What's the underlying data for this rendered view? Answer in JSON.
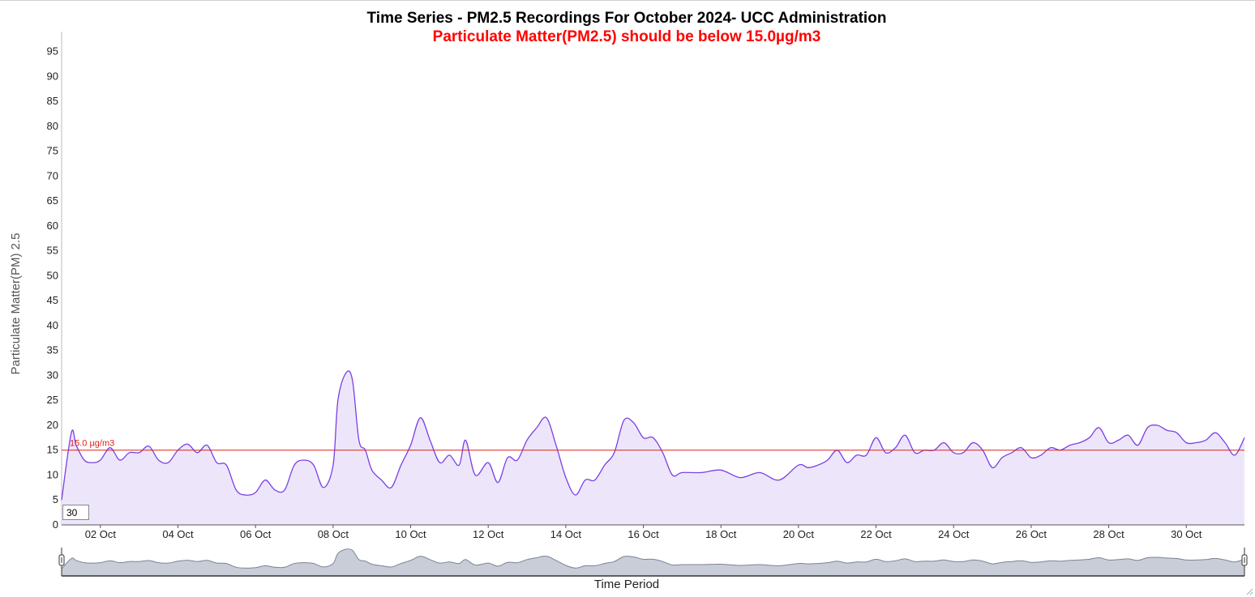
{
  "chart_data": {
    "type": "area",
    "title": "Time Series - PM2.5 Recordings For October 2024- UCC Administration",
    "subtitle": "Particulate Matter(PM2.5) should be below 15.0µg/m3",
    "ylabel": "Particulate Matter(PM) 2.5",
    "xlabel": "Time Period",
    "ylim": [
      0,
      99
    ],
    "yticks": [
      "0",
      "5",
      "10",
      "15",
      "20",
      "25",
      "30",
      "35",
      "40",
      "45",
      "50",
      "55",
      "60",
      "65",
      "70",
      "75",
      "80",
      "85",
      "90",
      "95"
    ],
    "xlim": [
      "2024-10-01T00:00",
      "2024-10-31T12:00"
    ],
    "xticks": [
      {
        "date": "2024-10-02",
        "label": "02 Oct"
      },
      {
        "date": "2024-10-04",
        "label": "04 Oct"
      },
      {
        "date": "2024-10-06",
        "label": "06 Oct"
      },
      {
        "date": "2024-10-08",
        "label": "08 Oct"
      },
      {
        "date": "2024-10-10",
        "label": "10 Oct"
      },
      {
        "date": "2024-10-12",
        "label": "12 Oct"
      },
      {
        "date": "2024-10-14",
        "label": "14 Oct"
      },
      {
        "date": "2024-10-16",
        "label": "16 Oct"
      },
      {
        "date": "2024-10-18",
        "label": "18 Oct"
      },
      {
        "date": "2024-10-20",
        "label": "20 Oct"
      },
      {
        "date": "2024-10-22",
        "label": "22 Oct"
      },
      {
        "date": "2024-10-24",
        "label": "24 Oct"
      },
      {
        "date": "2024-10-26",
        "label": "26 Oct"
      },
      {
        "date": "2024-10-28",
        "label": "28 Oct"
      },
      {
        "date": "2024-10-30",
        "label": "30 Oct"
      }
    ],
    "threshold": {
      "value": 15.0,
      "label": "15.0 µg/m3",
      "color": "#e0201a"
    },
    "series": [
      {
        "color": "#7b3fe4",
        "fill": "#ede6fb",
        "x": [
          "2024-10-01T00:00",
          "2024-10-01T06:00",
          "2024-10-01T09:00",
          "2024-10-01T14:00",
          "2024-10-01T19:00",
          "2024-10-02T00:00",
          "2024-10-02T06:00",
          "2024-10-02T12:00",
          "2024-10-02T18:00",
          "2024-10-03T00:00",
          "2024-10-03T06:00",
          "2024-10-03T12:00",
          "2024-10-03T18:00",
          "2024-10-04T00:00",
          "2024-10-04T06:00",
          "2024-10-04T12:00",
          "2024-10-04T18:00",
          "2024-10-05T00:00",
          "2024-10-05T06:00",
          "2024-10-05T12:00",
          "2024-10-05T18:00",
          "2024-10-06T00:00",
          "2024-10-06T06:00",
          "2024-10-06T12:00",
          "2024-10-06T18:00",
          "2024-10-07T00:00",
          "2024-10-07T06:00",
          "2024-10-07T12:00",
          "2024-10-07T18:00",
          "2024-10-08T00:00",
          "2024-10-08T03:00",
          "2024-10-08T08:00",
          "2024-10-08T12:00",
          "2024-10-08T16:00",
          "2024-10-08T20:00",
          "2024-10-09T00:00",
          "2024-10-09T06:00",
          "2024-10-09T12:00",
          "2024-10-09T18:00",
          "2024-10-10T00:00",
          "2024-10-10T06:00",
          "2024-10-10T12:00",
          "2024-10-10T18:00",
          "2024-10-11T00:00",
          "2024-10-11T06:00",
          "2024-10-11T10:00",
          "2024-10-11T16:00",
          "2024-10-12T00:00",
          "2024-10-12T06:00",
          "2024-10-12T12:00",
          "2024-10-12T18:00",
          "2024-10-13T00:00",
          "2024-10-13T06:00",
          "2024-10-13T12:00",
          "2024-10-13T18:00",
          "2024-10-14T00:00",
          "2024-10-14T06:00",
          "2024-10-14T12:00",
          "2024-10-14T18:00",
          "2024-10-15T00:00",
          "2024-10-15T06:00",
          "2024-10-15T12:00",
          "2024-10-15T18:00",
          "2024-10-16T00:00",
          "2024-10-16T06:00",
          "2024-10-16T12:00",
          "2024-10-16T18:00",
          "2024-10-17T00:00",
          "2024-10-17T12:00",
          "2024-10-18T00:00",
          "2024-10-18T12:00",
          "2024-10-19T00:00",
          "2024-10-19T12:00",
          "2024-10-20T00:00",
          "2024-10-20T06:00",
          "2024-10-20T12:00",
          "2024-10-20T18:00",
          "2024-10-21T00:00",
          "2024-10-21T06:00",
          "2024-10-21T12:00",
          "2024-10-21T18:00",
          "2024-10-22T00:00",
          "2024-10-22T06:00",
          "2024-10-22T12:00",
          "2024-10-22T18:00",
          "2024-10-23T00:00",
          "2024-10-23T06:00",
          "2024-10-23T12:00",
          "2024-10-23T18:00",
          "2024-10-24T00:00",
          "2024-10-24T06:00",
          "2024-10-24T12:00",
          "2024-10-24T18:00",
          "2024-10-25T00:00",
          "2024-10-25T06:00",
          "2024-10-25T12:00",
          "2024-10-25T18:00",
          "2024-10-26T00:00",
          "2024-10-26T06:00",
          "2024-10-26T12:00",
          "2024-10-26T18:00",
          "2024-10-27T00:00",
          "2024-10-27T06:00",
          "2024-10-27T12:00",
          "2024-10-27T18:00",
          "2024-10-28T00:00",
          "2024-10-28T06:00",
          "2024-10-28T12:00",
          "2024-10-28T18:00",
          "2024-10-29T00:00",
          "2024-10-29T06:00",
          "2024-10-29T12:00",
          "2024-10-29T18:00",
          "2024-10-30T00:00",
          "2024-10-30T06:00",
          "2024-10-30T12:00",
          "2024-10-30T18:00",
          "2024-10-31T00:00",
          "2024-10-31T06:00",
          "2024-10-31T12:00"
        ],
        "values": [
          5,
          18.5,
          16,
          13,
          12.5,
          13,
          15.5,
          13,
          14.5,
          14.5,
          15.8,
          13,
          12.5,
          15,
          16.2,
          14.5,
          16,
          12.5,
          12,
          7,
          6,
          6.5,
          9,
          7,
          7,
          12,
          13,
          12,
          7.5,
          12,
          25,
          30.5,
          29,
          17,
          15,
          11,
          9,
          7.5,
          12,
          16,
          21.5,
          17,
          12.5,
          14,
          12,
          17,
          10,
          12.5,
          8.5,
          13.5,
          13,
          17,
          19.5,
          21.5,
          16,
          9.5,
          6,
          9,
          9,
          12,
          14.5,
          21,
          20.5,
          17.5,
          17.5,
          14.5,
          10,
          10.5,
          10.5,
          11,
          9.5,
          10.5,
          9,
          12,
          11.5,
          12,
          13,
          15,
          12.5,
          14,
          14,
          17.5,
          14.5,
          15.5,
          18,
          14.5,
          15,
          15,
          16.5,
          14.5,
          14.5,
          16.5,
          15,
          11.5,
          13.5,
          14.5,
          15.5,
          13.5,
          14,
          15.5,
          15,
          16,
          16.5,
          17.5,
          19.5,
          16.5,
          17,
          18,
          16,
          19.5,
          20,
          19,
          18.5,
          16.5,
          16.5,
          17,
          18.5,
          16.5,
          14,
          17.5
        ]
      }
    ],
    "grid": false,
    "navigator": true,
    "range_input_value": "30"
  }
}
